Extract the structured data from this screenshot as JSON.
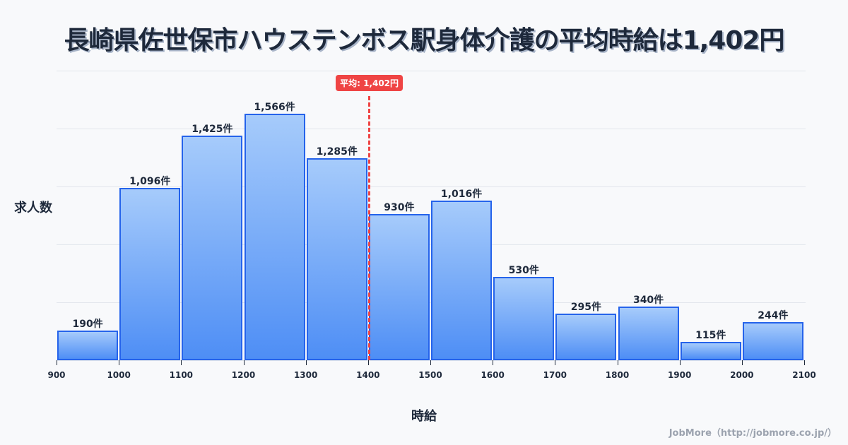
{
  "title": "長崎県佐世保市ハウステンボス駅身体介護の平均時給は1,402円",
  "ylabel": "求人数",
  "xlabel": "時給",
  "credit": "JobMore（http://jobmore.co.jp/）",
  "average": {
    "value": 1402,
    "label": "平均: 1,402円"
  },
  "colors": {
    "bar_top": "#a6cbfb",
    "bar_bottom": "#4e8ef5",
    "bar_border": "#2563eb",
    "avg_line": "#ef4444",
    "title": "#1e293b"
  },
  "chart_data": {
    "type": "bar",
    "title": "長崎県佐世保市ハウステンボス駅身体介護の平均時給は1,402円",
    "xlabel": "時給",
    "ylabel": "求人数",
    "bins": [
      900,
      1000,
      1100,
      1200,
      1300,
      1400,
      1500,
      1600,
      1700,
      1800,
      1900,
      2000,
      2100
    ],
    "categories": [
      "900-1000",
      "1000-1100",
      "1100-1200",
      "1200-1300",
      "1300-1400",
      "1400-1500",
      "1500-1600",
      "1600-1700",
      "1700-1800",
      "1800-1900",
      "1900-2000",
      "2000-2100"
    ],
    "values": [
      190,
      1096,
      1425,
      1566,
      1285,
      930,
      1016,
      530,
      295,
      340,
      115,
      244
    ],
    "value_labels": [
      "190件",
      "1,096件",
      "1,425件",
      "1,566件",
      "1,285件",
      "930件",
      "1,016件",
      "530件",
      "295件",
      "340件",
      "115件",
      "244件"
    ],
    "tick_labels": [
      "900",
      "1000",
      "1100",
      "1200",
      "1300",
      "1400",
      "1500",
      "1600",
      "1700",
      "1800",
      "1900",
      "2000",
      "2100"
    ],
    "xlim": [
      900,
      2100
    ],
    "ylim": [
      0,
      1840
    ],
    "grid": true,
    "annotations": [
      {
        "x": 1402,
        "text": "平均: 1,402円"
      }
    ]
  }
}
